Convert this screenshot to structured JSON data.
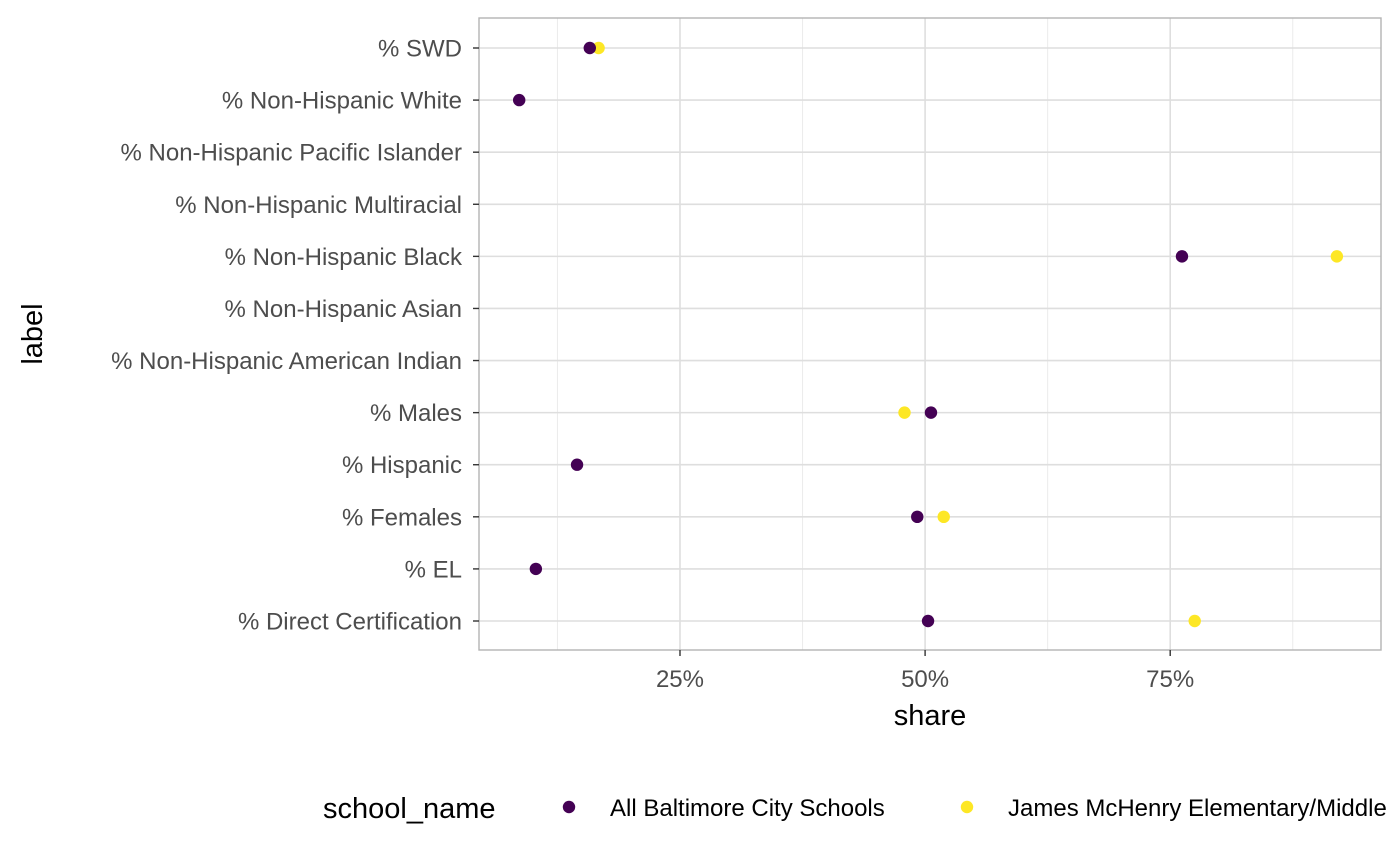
{
  "chart_data": {
    "type": "scatter",
    "xlabel": "share",
    "ylabel": "label",
    "xlim": [
      0.045,
      0.965
    ],
    "x_ticks": [
      {
        "value": 0.25,
        "label": "25%"
      },
      {
        "value": 0.5,
        "label": "50%"
      },
      {
        "value": 0.75,
        "label": "75%"
      }
    ],
    "categories": [
      "% SWD",
      "% Non-Hispanic White",
      "% Non-Hispanic Pacific Islander",
      "% Non-Hispanic Multiracial",
      "% Non-Hispanic Black",
      "% Non-Hispanic Asian",
      "% Non-Hispanic American Indian",
      "% Males",
      "% Hispanic",
      "% Females",
      "% EL",
      "% Direct Certification"
    ],
    "grid": true,
    "legend": {
      "title": "school_name",
      "position": "bottom"
    },
    "series": [
      {
        "name": "All Baltimore City Schools",
        "color": "#440154",
        "points": [
          {
            "category": "% SWD",
            "x": 0.158
          },
          {
            "category": "% Non-Hispanic White",
            "x": 0.086
          },
          {
            "category": "% Non-Hispanic Black",
            "x": 0.762
          },
          {
            "category": "% Males",
            "x": 0.506
          },
          {
            "category": "% Hispanic",
            "x": 0.145
          },
          {
            "category": "% Females",
            "x": 0.492
          },
          {
            "category": "% EL",
            "x": 0.103
          },
          {
            "category": "% Direct Certification",
            "x": 0.503
          }
        ]
      },
      {
        "name": "James McHenry Elementary/Middle",
        "color": "#FDE725",
        "points": [
          {
            "category": "% SWD",
            "x": 0.167
          },
          {
            "category": "% Non-Hispanic Black",
            "x": 0.92
          },
          {
            "category": "% Males",
            "x": 0.479
          },
          {
            "category": "% Females",
            "x": 0.519
          },
          {
            "category": "% Direct Certification",
            "x": 0.775
          }
        ]
      }
    ]
  }
}
